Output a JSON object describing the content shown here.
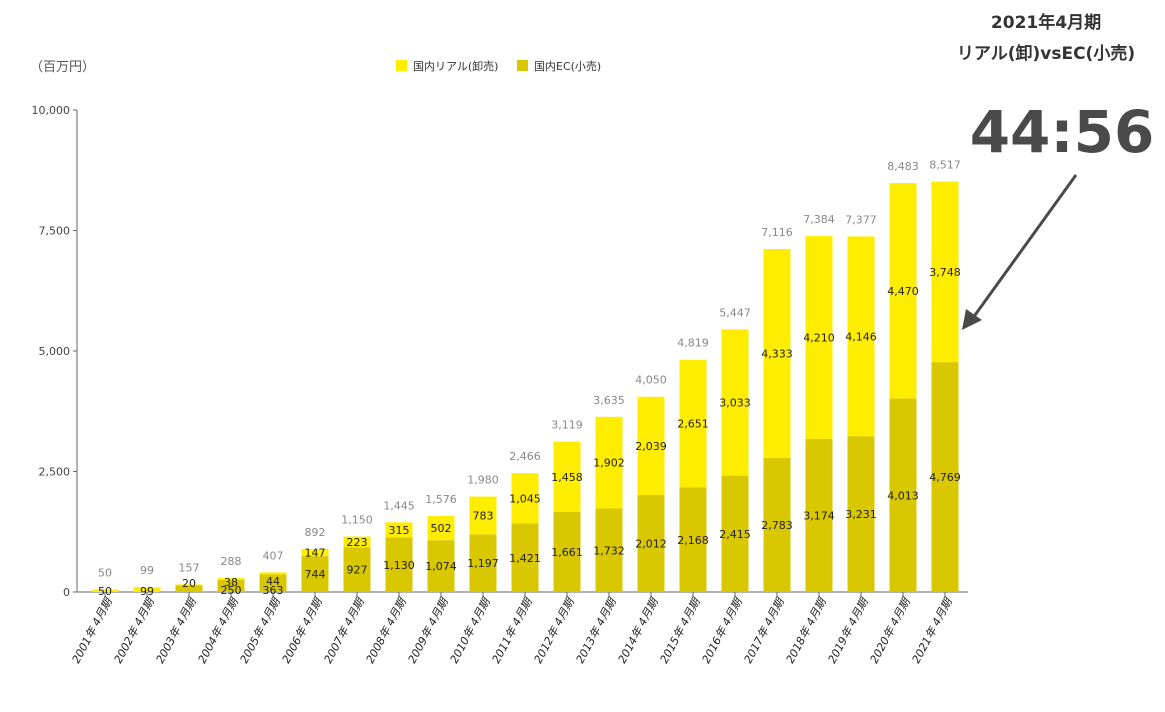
{
  "unit_label": "（百万円）",
  "legend": [
    {
      "label": "国内リアル(卸売)",
      "color": "#ffed00"
    },
    {
      "label": "国内EC(小売)",
      "color": "#d9c700"
    }
  ],
  "callout": {
    "line1": "2021年4月期",
    "line2": "リアル(卸)vsEC(小売)",
    "ratio": "44:56"
  },
  "chart_data": {
    "type": "bar",
    "stacked": true,
    "ylim": [
      0,
      10000
    ],
    "yticks": [
      "0",
      "2,500",
      "5,000",
      "7,500",
      "10,000"
    ],
    "ytick_values": [
      0,
      2500,
      5000,
      7500,
      10000
    ],
    "categories": [
      "2001年 4月期",
      "2002年 4月期",
      "2003年 4月期",
      "2004年 4月期",
      "2005年 4月期",
      "2006年 4月期",
      "2007年 4月期",
      "2008年 4月期",
      "2009年 4月期",
      "2010年 4月期",
      "2011年 4月期",
      "2012年 4月期",
      "2013年 4月期",
      "2014年 4月期",
      "2015年 4月期",
      "2016年 4月期",
      "2017年 4月期",
      "2018年 4月期",
      "2019年 4月期",
      "2020年 4月期",
      "2021年 4月期"
    ],
    "series": [
      {
        "name": "国内EC(小売)",
        "color": "#d9c700",
        "values": [
          0,
          0,
          137,
          250,
          363,
          744,
          927,
          1130,
          1074,
          1197,
          1421,
          1661,
          1732,
          2012,
          2168,
          2415,
          2783,
          3174,
          3231,
          4013,
          4769
        ],
        "labels": [
          "",
          "",
          "",
          "250",
          "363",
          "744",
          "927",
          "1,130",
          "1,074",
          "1,197",
          "1,421",
          "1,661",
          "1,732",
          "2,012",
          "2,168",
          "2,415",
          "2,783",
          "3,174",
          "3,231",
          "4,013",
          "4,769"
        ]
      },
      {
        "name": "国内リアル(卸売)",
        "color": "#ffed00",
        "values": [
          50,
          99,
          20,
          38,
          44,
          147,
          223,
          315,
          502,
          783,
          1045,
          1458,
          1902,
          2039,
          2651,
          3033,
          4333,
          4210,
          4146,
          4470,
          3748
        ],
        "labels": [
          "50",
          "99",
          "20",
          "38",
          "44",
          "147",
          "223",
          "315",
          "502",
          "783",
          "1,045",
          "1,458",
          "1,902",
          "2,039",
          "2,651",
          "3,033",
          "4,333",
          "4,210",
          "4,146",
          "4,470",
          "3,748"
        ]
      }
    ],
    "totals": [
      50,
      99,
      157,
      288,
      407,
      892,
      1150,
      1445,
      1576,
      1980,
      2466,
      3119,
      3635,
      4050,
      4819,
      5447,
      7116,
      7384,
      7377,
      8483,
      8517
    ],
    "total_labels": [
      "50",
      "99",
      "157",
      "288",
      "407",
      "892",
      "1,150",
      "1,445",
      "1,576",
      "1,980",
      "2,466",
      "3,119",
      "3,635",
      "4,050",
      "4,819",
      "5,447",
      "7,116",
      "7,384",
      "7,377",
      "8,483",
      "8,517"
    ]
  }
}
